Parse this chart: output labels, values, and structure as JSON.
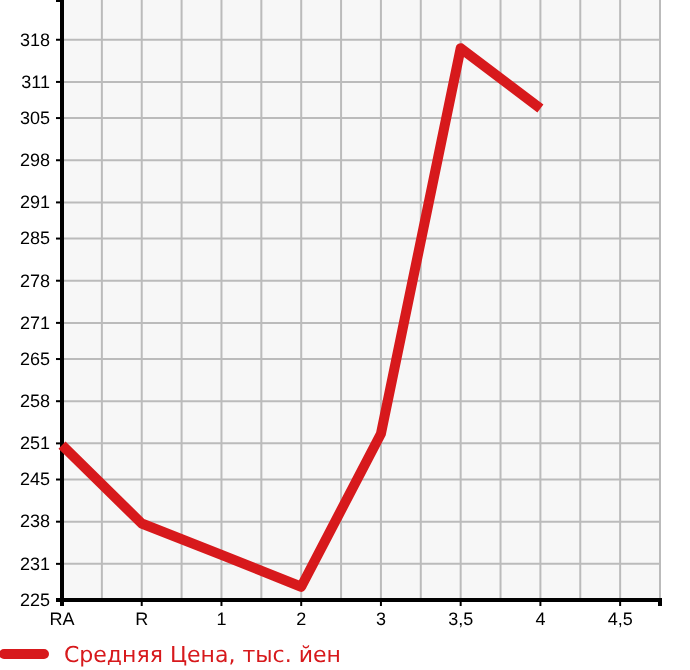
{
  "chart_data": {
    "type": "line",
    "categories": [
      "RA",
      "R",
      "1",
      "2",
      "3",
      "3,5",
      "4",
      "4,5"
    ],
    "series": [
      {
        "name": "Средняя Цена, тыс. йен",
        "color": "#d7191c",
        "values": [
          250.7,
          237.7,
          232.5,
          227.2,
          252.6,
          316.6,
          306.6,
          null
        ]
      }
    ],
    "ylim": [
      225,
      324.6
    ],
    "yticks": [
      225,
      231,
      238,
      245,
      251,
      258,
      265,
      271,
      278,
      285,
      291,
      298,
      305,
      311,
      318
    ],
    "grid": true,
    "legend": "bottom",
    "marker": "none",
    "line_style": "solid"
  }
}
